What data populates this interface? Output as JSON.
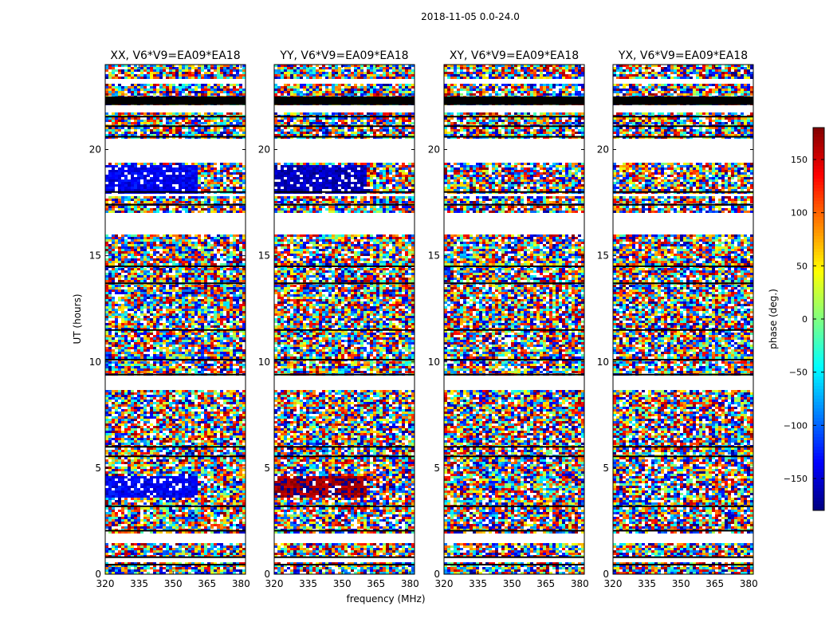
{
  "chart_data": {
    "type": "heatmap",
    "suptitle": "2018-11-05 0.0-24.0",
    "xlabel": "frequency (MHz)",
    "ylabel": "UT (hours)",
    "xlim": [
      320,
      382
    ],
    "ylim": [
      0,
      24
    ],
    "xticks": [
      320,
      335,
      350,
      365,
      380
    ],
    "yticks": [
      0,
      5,
      10,
      15,
      20
    ],
    "panels": [
      {
        "title": "XX, V6*V9=EA09*EA18",
        "pol": "XX"
      },
      {
        "title": "YY, V6*V9=EA09*EA18",
        "pol": "YY"
      },
      {
        "title": "XY, V6*V9=EA09*EA18",
        "pol": "XY"
      },
      {
        "title": "YX, V6*V9=EA09*EA18",
        "pol": "YX"
      }
    ],
    "empty_ut_ranges": [
      [
        0.55,
        0.75
      ],
      [
        1.5,
        1.9
      ],
      [
        8.65,
        9.3
      ],
      [
        15.95,
        17.0
      ],
      [
        17.75,
        17.95
      ],
      [
        19.4,
        20.5
      ],
      [
        21.8,
        22.05
      ],
      [
        23.1,
        23.3
      ]
    ],
    "flagged_ut_lines": [
      0.45,
      0.8,
      2.05,
      3.2,
      5.55,
      6.0,
      9.4,
      10.1,
      11.5,
      13.7,
      14.5,
      17.4,
      18.0,
      20.6,
      21.1,
      21.55
    ],
    "dense_flag_band": [
      22.1,
      22.5
    ],
    "colorbar": {
      "label": "phase (deg.)",
      "min": -180,
      "max": 180,
      "ticks": [
        -150,
        -100,
        -50,
        0,
        50,
        100,
        150
      ],
      "tick_labels": [
        "−150",
        "−100",
        "−50",
        "0",
        "50",
        "100",
        "150"
      ],
      "colormap": "jet"
    }
  }
}
